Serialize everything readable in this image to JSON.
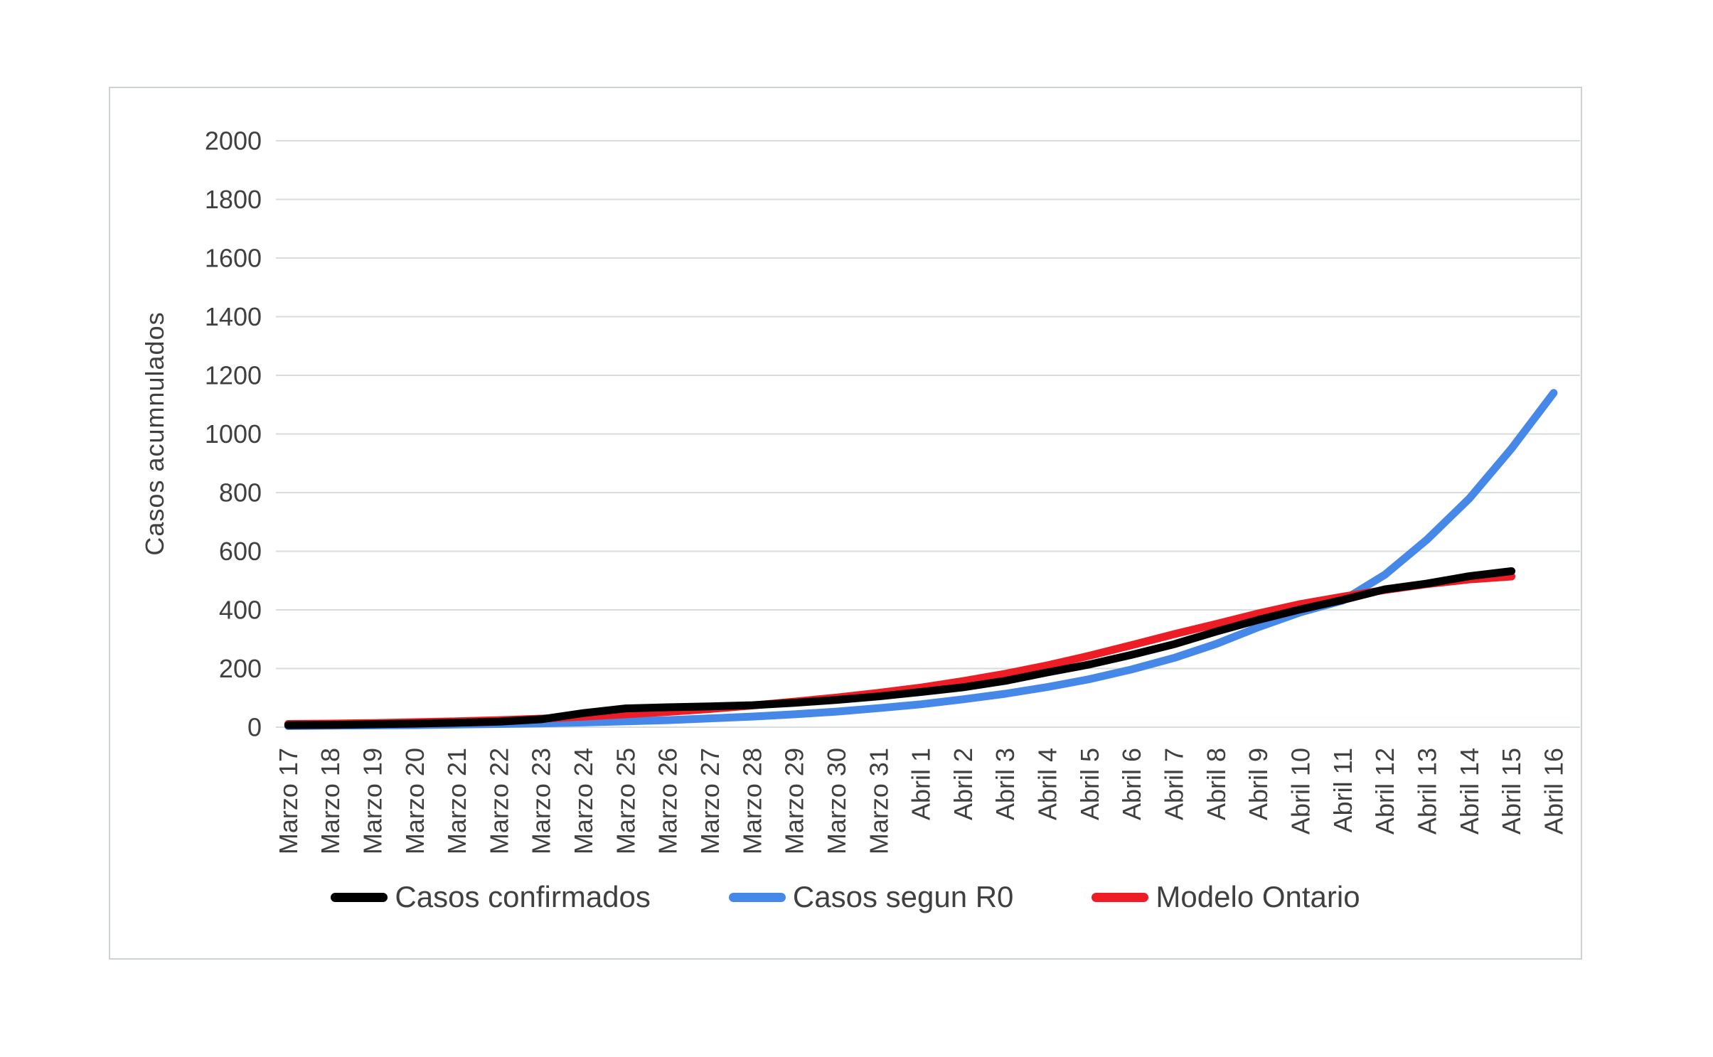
{
  "colors": {
    "background": "#ffffff",
    "panel_border": "#cbd3d2",
    "grid": "#d7dddb",
    "text": "#404040"
  },
  "chart_data": {
    "type": "line",
    "title": "",
    "xlabel": "",
    "ylabel": "Casos acumnulados",
    "ylim": [
      0,
      2000
    ],
    "ytick_step": 200,
    "yticks": [
      0,
      200,
      400,
      600,
      800,
      1000,
      1200,
      1400,
      1600,
      1800,
      2000
    ],
    "grid": true,
    "legend_position": "bottom",
    "categories": [
      "Marzo 17",
      "Marzo 18",
      "Marzo 19",
      "Marzo 20",
      "Marzo 21",
      "Marzo 22",
      "Marzo 23",
      "Marzo 24",
      "Marzo 25",
      "Marzo 26",
      "Marzo 27",
      "Marzo 28",
      "Marzo 29",
      "Marzo 30",
      "Marzo 31",
      "Abril 1",
      "Abril 2",
      "Abril 3",
      "Abril 4",
      "Abril 5",
      "Abril 6",
      "Abril 7",
      "Abril 8",
      "Abril 9",
      "Abril 10",
      "Abril 11",
      "Abril 12",
      "Abril 13",
      "Abril 14",
      "Abril 15",
      "Abril 16"
    ],
    "series": [
      {
        "name": "Casos confirmados",
        "color": "#000000",
        "values": [
          7,
          8,
          10,
          12,
          15,
          19,
          27,
          48,
          64,
          68,
          71,
          75,
          83,
          93,
          105,
          120,
          136,
          158,
          187,
          214,
          247,
          283,
          326,
          366,
          402,
          434,
          470,
          490,
          515,
          532,
          null
        ]
      },
      {
        "name": "Casos segun R0",
        "color": "#4688e8",
        "values": [
          4,
          5,
          6,
          7,
          9,
          11,
          13,
          16,
          20,
          24,
          30,
          36,
          44,
          53,
          65,
          78,
          95,
          114,
          137,
          164,
          197,
          236,
          284,
          341,
          392,
          432,
          520,
          640,
          780,
          950,
          1140
        ]
      },
      {
        "name": "Modelo Ontario",
        "color": "#ee1c25",
        "values": [
          11,
          12,
          14,
          17,
          20,
          24,
          29,
          36,
          44,
          52,
          62,
          74,
          87,
          101,
          117,
          135,
          157,
          182,
          211,
          244,
          280,
          317,
          352,
          388,
          420,
          445,
          468,
          488,
          504,
          514,
          null
        ]
      }
    ]
  }
}
